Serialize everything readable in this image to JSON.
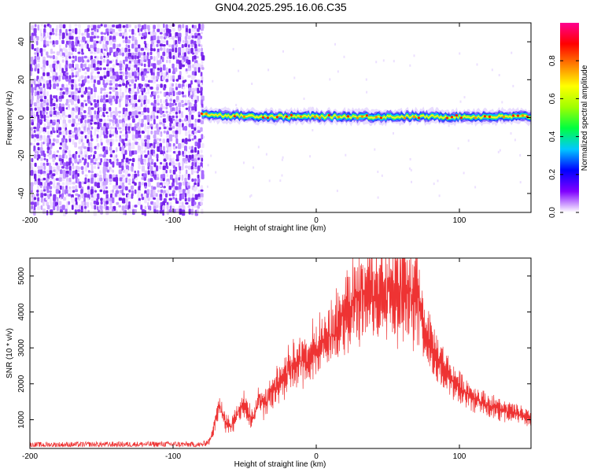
{
  "title": "GN04.2025.295.16.06.C35",
  "colors": {
    "signal": "#ee3333",
    "noise": "#7a22e6",
    "axis": "#000000"
  },
  "chart_data": [
    {
      "type": "heatmap",
      "title": "GN04.2025.295.16.06.C35",
      "xlabel": "Height of straight line (km)",
      "ylabel": "Frequency (Hz)",
      "xlim": [
        -200,
        150
      ],
      "ylim": [
        -50,
        50
      ],
      "x_ticks": [
        -200,
        -100,
        0,
        100
      ],
      "y_ticks": [
        40,
        20,
        0,
        -20,
        -40
      ],
      "noise_region_x": [
        -200,
        -80
      ],
      "signal_line": {
        "x_range": [
          -80,
          150
        ],
        "frequency": 0.5,
        "start_frequency": 2
      },
      "colorbar": {
        "label": "Normalized spectral amplitude",
        "range": [
          0.0,
          1.0
        ],
        "ticks": [
          0.0,
          0.2,
          0.4,
          0.6,
          0.8
        ],
        "tick_labels": [
          "0.0",
          "0.2",
          "0.4",
          "0.6",
          "0.8"
        ],
        "colors": [
          "#ffffff",
          "#8000ff",
          "#0000ff",
          "#00c8ff",
          "#00ff40",
          "#a0ff00",
          "#ffff00",
          "#ff8000",
          "#ff0000",
          "#ff0090"
        ]
      }
    },
    {
      "type": "line",
      "xlabel": "Height of straight line (km)",
      "ylabel": "SNR (10 * v/v)",
      "xlim": [
        -200,
        150
      ],
      "ylim": [
        200,
        5500
      ],
      "x_ticks": [
        -200,
        -100,
        0,
        100
      ],
      "y_ticks": [
        1000,
        2000,
        3000,
        4000,
        5000
      ],
      "envelope": {
        "x": [
          -200,
          -150,
          -100,
          -80,
          -75,
          -72,
          -68,
          -65,
          -60,
          -55,
          -50,
          -45,
          -40,
          -35,
          -30,
          -25,
          -20,
          -15,
          -10,
          -5,
          0,
          5,
          10,
          15,
          20,
          25,
          30,
          35,
          40,
          45,
          50,
          55,
          60,
          65,
          70,
          72,
          75,
          80,
          85,
          90,
          95,
          100,
          105,
          110,
          115,
          120,
          125,
          130,
          135,
          140,
          145,
          150
        ],
        "y": [
          300,
          310,
          320,
          300,
          400,
          700,
          1500,
          1100,
          800,
          1200,
          1400,
          1000,
          1600,
          1500,
          1900,
          2100,
          2300,
          2500,
          2700,
          2800,
          3000,
          3200,
          3400,
          3700,
          3900,
          4200,
          4400,
          4500,
          4600,
          4600,
          4700,
          4700,
          4650,
          4600,
          4500,
          4300,
          3600,
          3100,
          2700,
          2400,
          2100,
          1900,
          1750,
          1600,
          1500,
          1400,
          1350,
          1250,
          1200,
          1150,
          1100,
          1000
        ]
      }
    }
  ]
}
